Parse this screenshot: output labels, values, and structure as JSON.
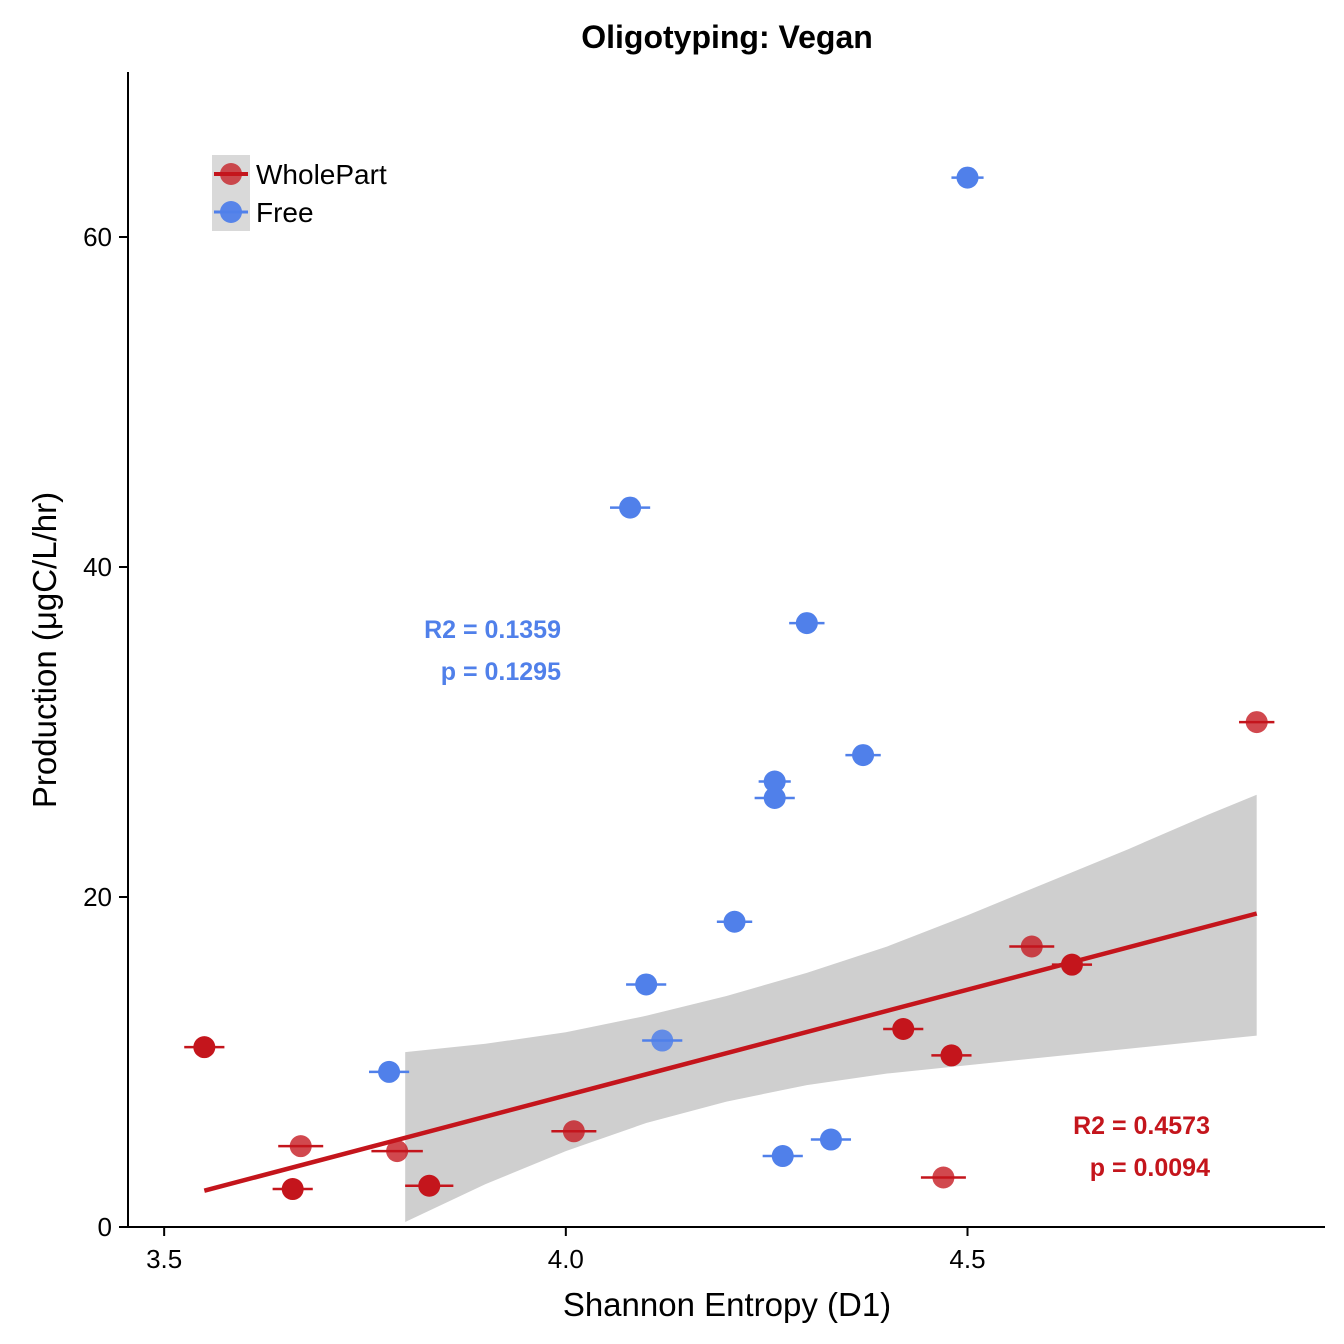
{
  "chart_data": {
    "type": "scatter",
    "title": "Oligotyping: Vegan",
    "xlabel": "Shannon Entropy (D1)",
    "ylabel": "Production (μgC/L/hr)",
    "xlim": [
      3.455,
      4.945
    ],
    "ylim": [
      0,
      70
    ],
    "x_ticks": [
      3.5,
      4.0,
      4.5
    ],
    "x_tick_labels": [
      "3.5",
      "4.0",
      "4.5"
    ],
    "y_ticks": [
      0,
      20,
      40,
      60
    ],
    "y_tick_labels": [
      "0",
      "20",
      "40",
      "60"
    ],
    "grid": false,
    "legend": {
      "position": "top-left",
      "entries": [
        {
          "name": "WholePart",
          "color": "#c4151c"
        },
        {
          "name": "Free",
          "color": "#5080ea"
        }
      ]
    },
    "series": [
      {
        "name": "WholePart",
        "color": "#c4151c",
        "points": [
          {
            "x": 3.55,
            "y": 10.9,
            "xerr": 0.025
          },
          {
            "x": 3.67,
            "y": 4.9,
            "xerr": 0.028
          },
          {
            "x": 3.66,
            "y": 2.3,
            "xerr": 0.025
          },
          {
            "x": 3.79,
            "y": 4.6,
            "xerr": 0.032
          },
          {
            "x": 3.83,
            "y": 2.5,
            "xerr": 0.03
          },
          {
            "x": 4.01,
            "y": 5.8,
            "xerr": 0.028
          },
          {
            "x": 4.42,
            "y": 12.0,
            "xerr": 0.025
          },
          {
            "x": 4.47,
            "y": 3.0,
            "xerr": 0.028
          },
          {
            "x": 4.48,
            "y": 10.4,
            "xerr": 0.025
          },
          {
            "x": 4.58,
            "y": 17.0,
            "xerr": 0.028
          },
          {
            "x": 4.63,
            "y": 15.9,
            "xerr": 0.025
          },
          {
            "x": 4.86,
            "y": 30.6,
            "xerr": 0.022
          }
        ],
        "fit": {
          "x": [
            3.55,
            4.86
          ],
          "y": [
            2.2,
            19.0
          ]
        },
        "ci": {
          "x": [
            3.8,
            3.9,
            4.0,
            4.1,
            4.2,
            4.3,
            4.4,
            4.5,
            4.6,
            4.7,
            4.8,
            4.86
          ],
          "upper": [
            10.6,
            11.1,
            11.8,
            12.8,
            14.0,
            15.4,
            17.0,
            18.9,
            20.9,
            22.9,
            25.0,
            26.2
          ],
          "lower": [
            0.3,
            2.6,
            4.6,
            6.3,
            7.6,
            8.6,
            9.3,
            9.8,
            10.3,
            10.8,
            11.3,
            11.6
          ]
        },
        "stats": {
          "r2": "R2 = 0.4573",
          "p": "p = 0.0094"
        }
      },
      {
        "name": "Free",
        "color": "#5080ea",
        "points": [
          {
            "x": 3.78,
            "y": 9.4,
            "xerr": 0.025
          },
          {
            "x": 4.08,
            "y": 43.6,
            "xerr": 0.025
          },
          {
            "x": 4.1,
            "y": 14.7,
            "xerr": 0.025
          },
          {
            "x": 4.12,
            "y": 11.3,
            "xerr": 0.025
          },
          {
            "x": 4.21,
            "y": 18.5,
            "xerr": 0.022
          },
          {
            "x": 4.26,
            "y": 27.0,
            "xerr": 0.02
          },
          {
            "x": 4.26,
            "y": 26.0,
            "xerr": 0.025
          },
          {
            "x": 4.27,
            "y": 4.3,
            "xerr": 0.025
          },
          {
            "x": 4.3,
            "y": 36.6,
            "xerr": 0.022
          },
          {
            "x": 4.33,
            "y": 5.3,
            "xerr": 0.025
          },
          {
            "x": 4.37,
            "y": 28.6,
            "xerr": 0.022
          },
          {
            "x": 4.5,
            "y": 63.6,
            "xerr": 0.02
          }
        ],
        "stats": {
          "r2": "R2 = 0.1359",
          "p": "p = 0.1295"
        }
      }
    ]
  }
}
